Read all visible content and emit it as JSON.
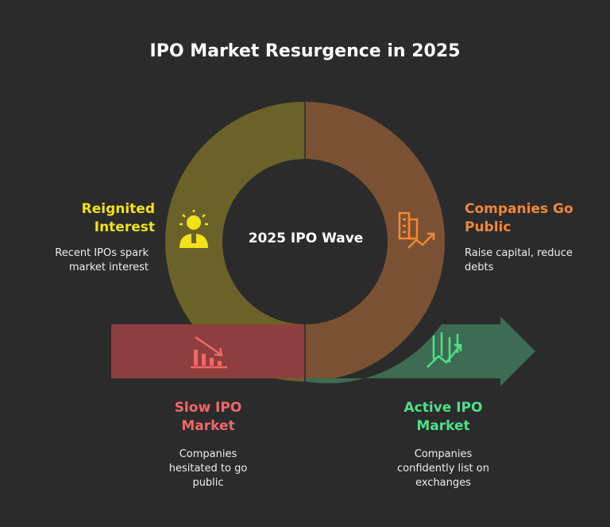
{
  "title": "IPO Market Resurgence in 2025",
  "center_label": "2025 IPO Wave",
  "stages": {
    "reignited": {
      "title": "Reignited Interest",
      "title_line1": "Reignited",
      "title_line2": "Interest",
      "desc_line1": "Recent IPOs spark",
      "desc_line2": "market interest",
      "color": "#f2e21a",
      "segment_color": "#6b6229",
      "icon": "lightbulb-person-icon"
    },
    "go_public": {
      "title": "Companies Go Public",
      "title_line1": "Companies Go",
      "title_line2": "Public",
      "desc_line1": "Raise capital, reduce",
      "desc_line2": "debts",
      "color": "#f0883a",
      "segment_color": "#7a5233",
      "icon": "building-growth-icon"
    },
    "slow": {
      "title": "Slow IPO Market",
      "title_line1": "Slow IPO",
      "title_line2": "Market",
      "desc_line1": "Companies",
      "desc_line2": "hesitated to go",
      "desc_line3": "public",
      "color": "#f06868",
      "segment_color": "#8f3e3e",
      "icon": "declining-chart-icon"
    },
    "active": {
      "title": "Active IPO Market",
      "title_line1": "Active IPO",
      "title_line2": "Market",
      "desc_line1": "Companies",
      "desc_line2": "confidently list on",
      "desc_line3": "exchanges",
      "color": "#4fe08a",
      "segment_color": "#3d6b53",
      "icon": "rising-chart-icon"
    }
  }
}
